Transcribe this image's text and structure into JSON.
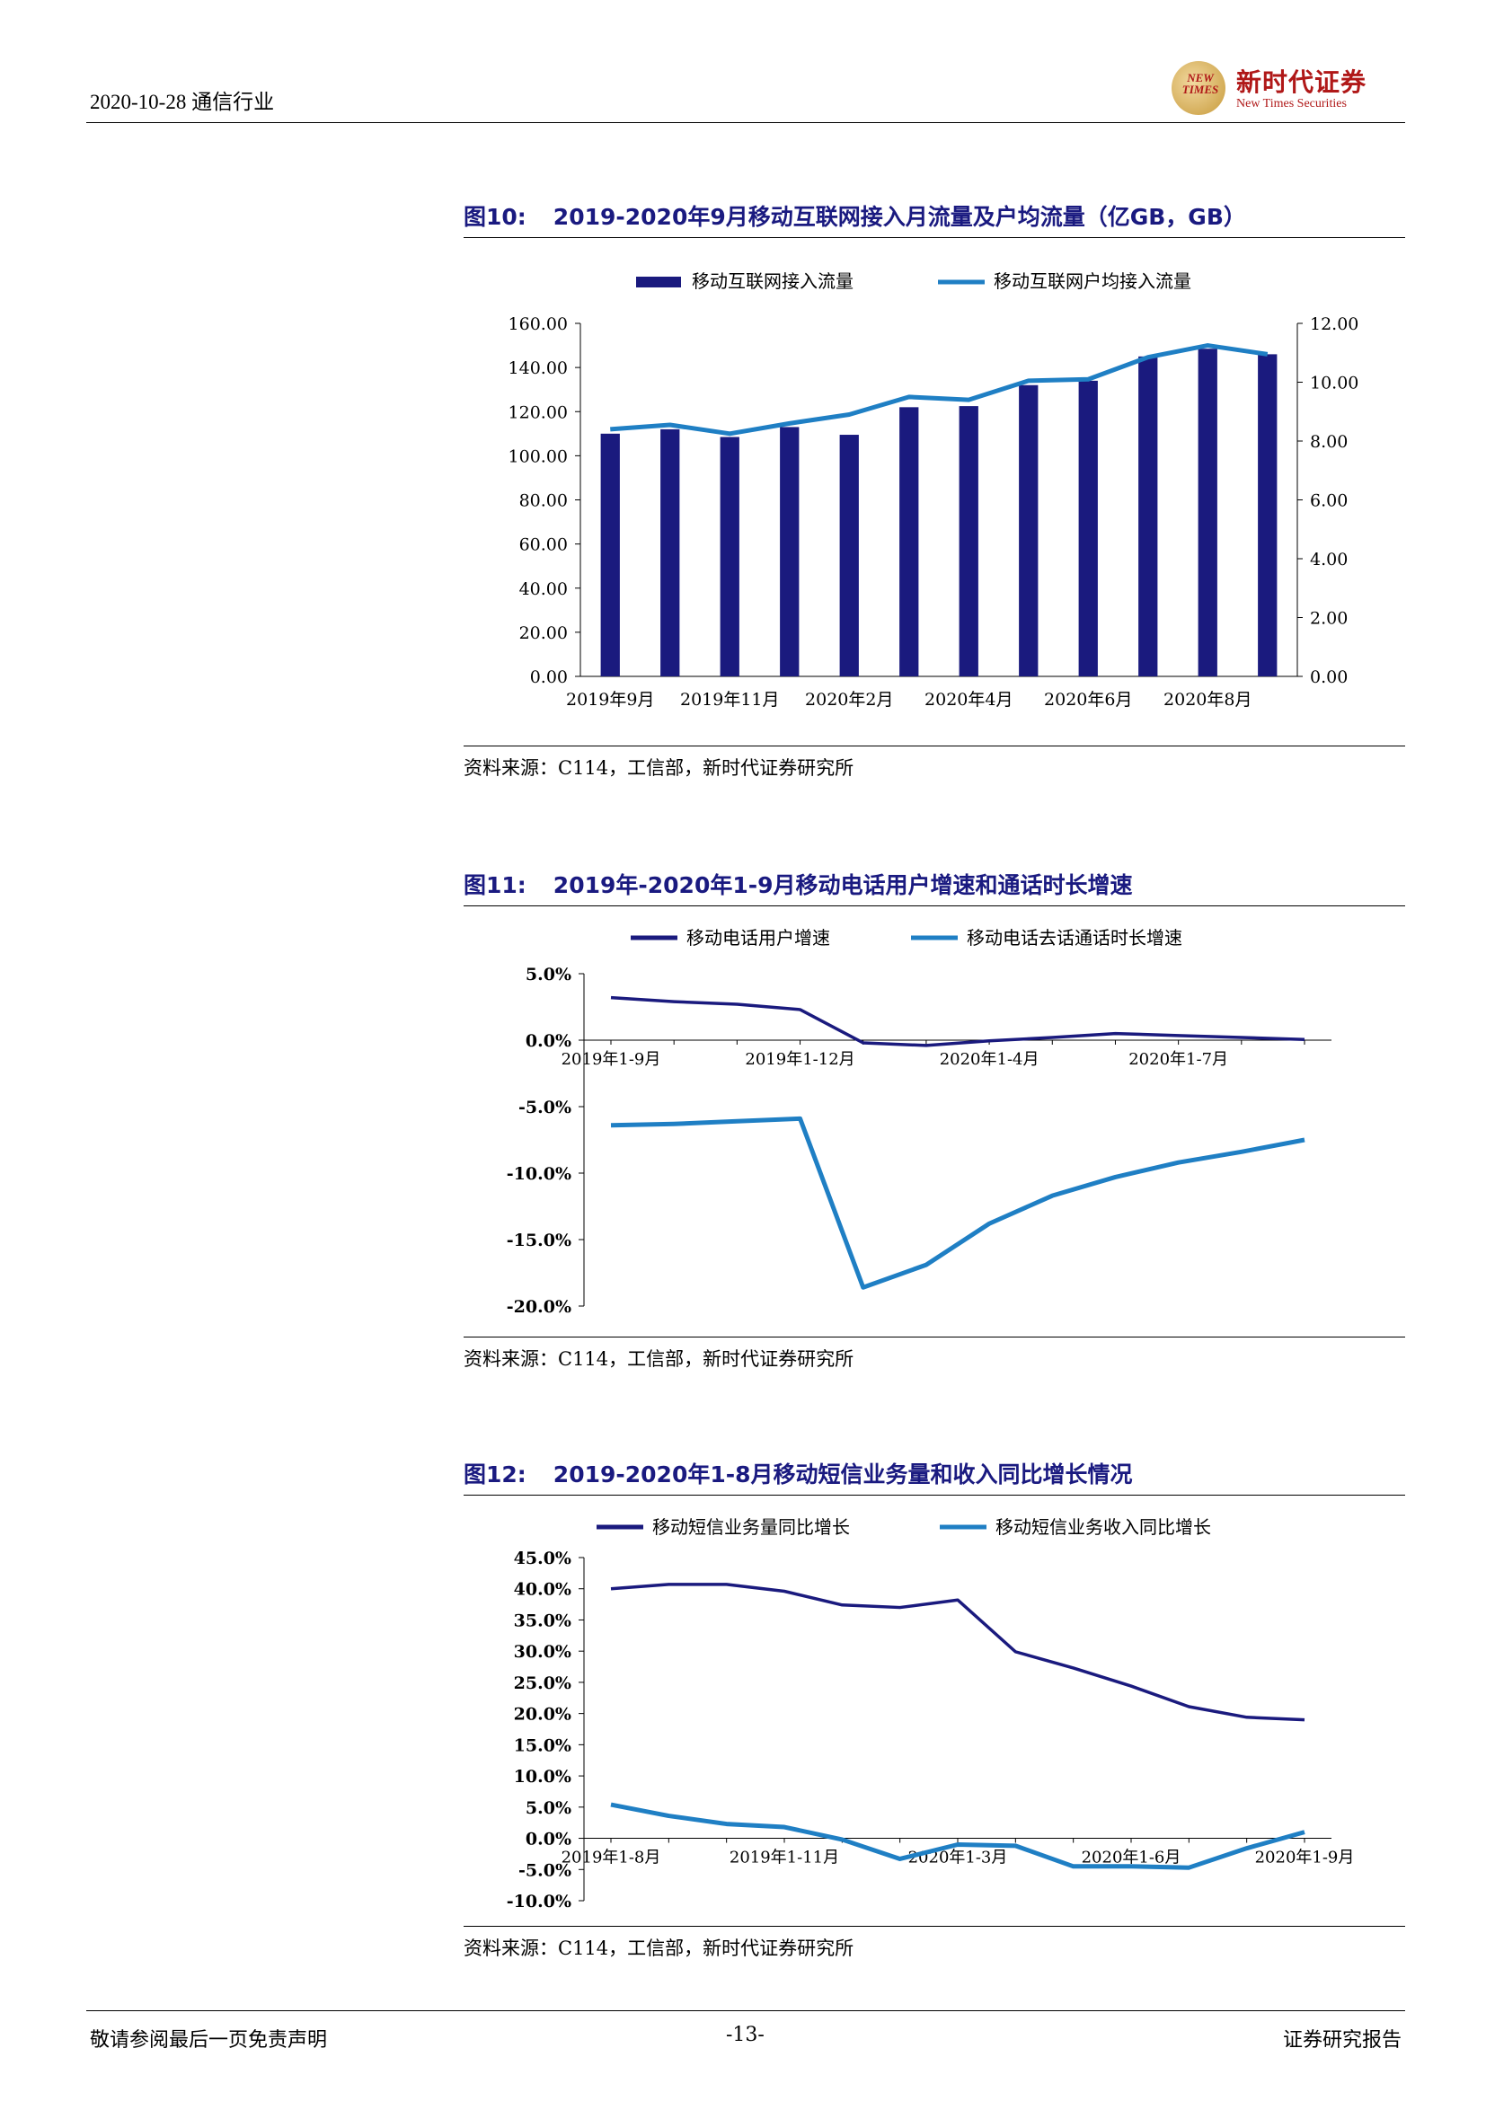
{
  "header": {
    "date_section": "2020-10-28 通信行业",
    "logo_mark": "NEW TIMES",
    "logo_cn": "新时代证券",
    "logo_en": "New Times Securities"
  },
  "colors": {
    "dark_navy": "#1a1a7e",
    "blue": "#1f7fc4",
    "title": "#1a1a80"
  },
  "figures": [
    {
      "num": "图10:",
      "title": "2019-2020年9月移动互联网接入月流量及户均流量（亿GB，GB）",
      "source": "资料来源：C114，工信部，新时代证券研究所"
    },
    {
      "num": "图11:",
      "title": "2019年-2020年1-9月移动电话用户增速和通话时长增速",
      "source": "资料来源：C114，工信部，新时代证券研究所"
    },
    {
      "num": "图12:",
      "title": "2019-2020年1-8月移动短信业务量和收入同比增长情况",
      "source": "资料来源：C114，工信部，新时代证券研究所"
    }
  ],
  "chart_data": [
    {
      "type": "bar",
      "legend_position": "top",
      "categories": [
        "2019年9月",
        "2019年10月",
        "2019年11月",
        "2019年12月",
        "2020年2月",
        "2020年3月",
        "2020年4月",
        "2020年5月",
        "2020年6月",
        "2020年7月",
        "2020年8月",
        "2020年9月"
      ],
      "tick_labels": [
        "2019年9月",
        "2019年11月",
        "2020年2月",
        "2020年4月",
        "2020年6月",
        "2020年8月"
      ],
      "series": [
        {
          "name": "移动互联网接入流量",
          "type": "bar",
          "axis": "left",
          "values": [
            110,
            112,
            108.5,
            113,
            109.5,
            122,
            122.5,
            132,
            134,
            145,
            148.5,
            146
          ]
        },
        {
          "name": "移动互联网户均接入流量",
          "type": "line",
          "axis": "right",
          "values": [
            8.4,
            8.55,
            8.25,
            8.6,
            8.9,
            9.5,
            9.4,
            10.05,
            10.1,
            10.85,
            11.25,
            10.95
          ]
        }
      ],
      "ylim_left": [
        0,
        160
      ],
      "yticks_left": [
        "0.00",
        "20.00",
        "40.00",
        "60.00",
        "80.00",
        "100.00",
        "120.00",
        "140.00",
        "160.00"
      ],
      "ylim_right": [
        0,
        12
      ],
      "yticks_right": [
        "0.00",
        "2.00",
        "4.00",
        "6.00",
        "8.00",
        "10.00",
        "12.00"
      ]
    },
    {
      "type": "line",
      "legend_position": "top",
      "categories": [
        "2019年1-9月",
        "2019年1-10月",
        "2019年1-11月",
        "2019年1-12月",
        "2020年1-2月",
        "2020年1-3月",
        "2020年1-4月",
        "2020年1-5月",
        "2020年1-6月",
        "2020年1-7月",
        "2020年1-8月",
        "2020年1-9月"
      ],
      "tick_labels": [
        "2019年1-9月",
        "2019年1-12月",
        "2020年1-4月",
        "2020年1-7月"
      ],
      "series": [
        {
          "name": "移动电话用户增速",
          "values": [
            3.2,
            2.9,
            2.7,
            2.3,
            -0.2,
            -0.4,
            -0.05,
            0.2,
            0.5,
            0.35,
            0.2,
            0.05
          ]
        },
        {
          "name": "移动电话去话通话时长增速",
          "values": [
            -6.4,
            -6.3,
            -6.1,
            -5.9,
            -18.6,
            -16.9,
            -13.8,
            -11.7,
            -10.3,
            -9.2,
            -8.4,
            -7.5
          ]
        }
      ],
      "ylim": [
        -20,
        5
      ],
      "yticks": [
        "5.0%",
        "0.0%",
        "-5.0%",
        "-10.0%",
        "-15.0%",
        "-20.0%"
      ]
    },
    {
      "type": "line",
      "legend_position": "top",
      "categories": [
        "2019年1-8月",
        "2019年1-9月",
        "2019年1-10月",
        "2019年1-11月",
        "2019年1-12月",
        "2020年1-2月",
        "2020年1-3月",
        "2020年1-4月",
        "2020年1-5月",
        "2020年1-6月",
        "2020年1-7月",
        "2020年1-8月",
        "2020年1-9月"
      ],
      "tick_labels": [
        "2019年1-8月",
        "2019年1-11月",
        "2020年1-3月",
        "2020年1-6月",
        "2020年1-9月"
      ],
      "series": [
        {
          "name": "移动短信业务量同比增长",
          "values": [
            40.0,
            40.7,
            40.7,
            39.6,
            37.4,
            37.0,
            38.2,
            29.9,
            27.3,
            24.4,
            21.1,
            19.4,
            19.0
          ]
        },
        {
          "name": "移动短信业务收入同比增长",
          "values": [
            5.4,
            3.6,
            2.3,
            1.8,
            -0.2,
            -3.3,
            -1.0,
            -1.2,
            -4.5,
            -4.5,
            -4.7,
            -1.6,
            1.0
          ]
        }
      ],
      "ylim": [
        -10,
        45
      ],
      "yticks": [
        "45.0%",
        "40.0%",
        "35.0%",
        "30.0%",
        "25.0%",
        "20.0%",
        "15.0%",
        "10.0%",
        "5.0%",
        "0.0%",
        "-5.0%",
        "-10.0%"
      ]
    }
  ],
  "footer": {
    "left": "敬请参阅最后一页免责声明",
    "center": "-13-",
    "right": "证券研究报告"
  }
}
